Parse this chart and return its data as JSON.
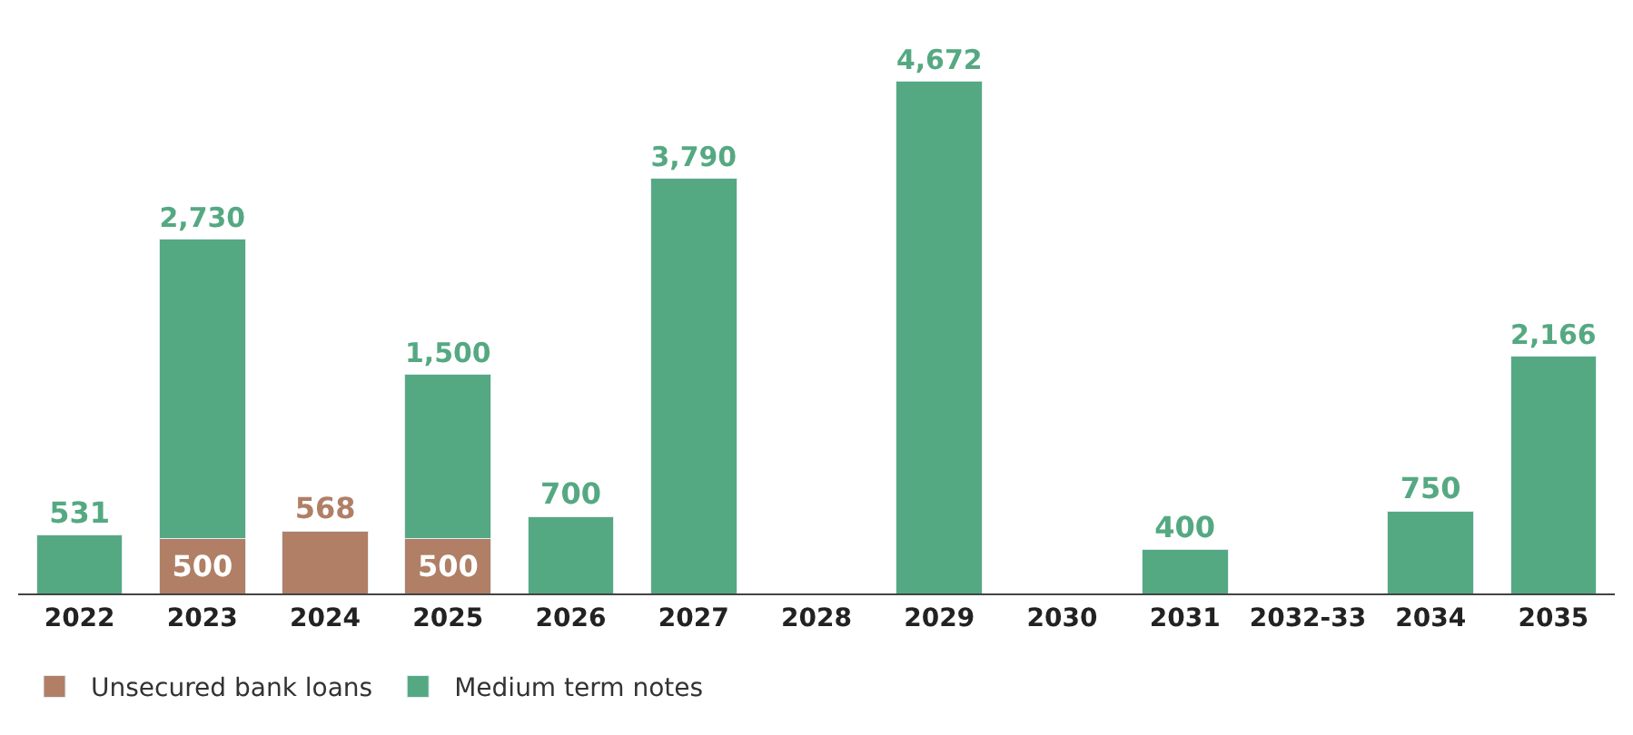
{
  "chart_data": {
    "type": "bar",
    "stacked": true,
    "legend": "bottom left",
    "categories": [
      "2022",
      "2023",
      "2024",
      "2025",
      "2026",
      "2027",
      "2028",
      "2029",
      "2030",
      "2031",
      "2032-33",
      "2034",
      "2035"
    ],
    "series": [
      {
        "name": "Unsecured bank loans",
        "color": "#b07f66",
        "values": [
          null,
          500,
          568,
          500,
          null,
          null,
          null,
          null,
          null,
          null,
          null,
          null,
          null
        ],
        "value_labels": [
          null,
          "500",
          "568",
          "500",
          null,
          null,
          null,
          null,
          null,
          null,
          null,
          null,
          null
        ]
      },
      {
        "name": "Medium term notes",
        "color": "#55a982",
        "values": [
          531,
          2730,
          null,
          1500,
          700,
          3790,
          null,
          4672,
          null,
          400,
          null,
          750,
          2166
        ],
        "value_labels": [
          "531",
          "2,730",
          null,
          "1,500",
          "700",
          "3,790",
          null,
          "4,672",
          null,
          "400",
          null,
          "750",
          "2,166"
        ]
      }
    ]
  }
}
